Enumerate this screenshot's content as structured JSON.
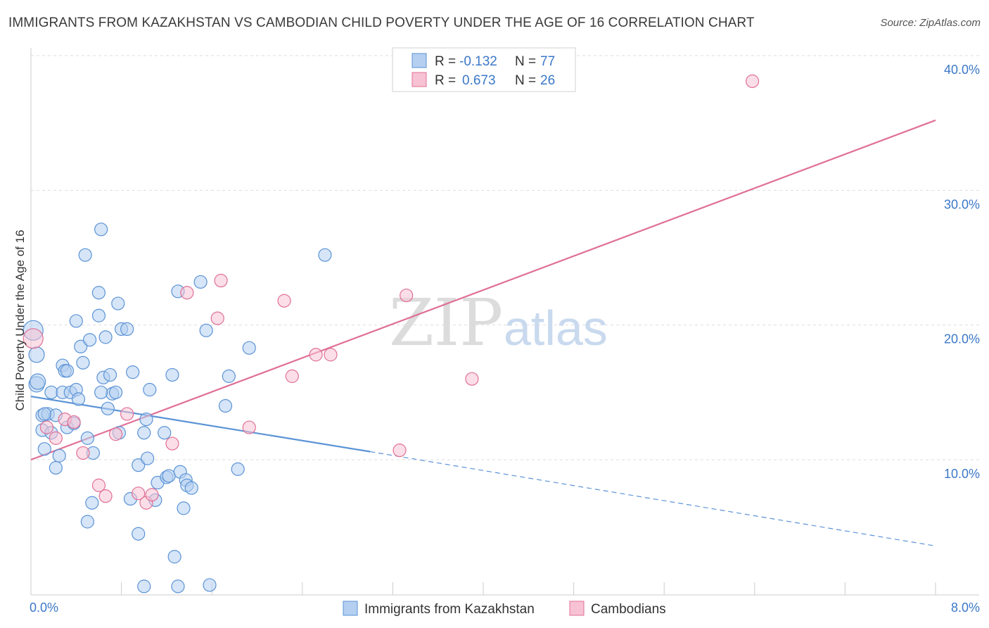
{
  "title": "IMMIGRANTS FROM KAZAKHSTAN VS CAMBODIAN CHILD POVERTY UNDER THE AGE OF 16 CORRELATION CHART",
  "source": "Source: ZipAtlas.com",
  "watermark": {
    "zip": "ZIP",
    "atlas": "atlas"
  },
  "colors": {
    "blue": "#5b93d6",
    "blue_fill": "#b4cff0",
    "pink": "#e07096",
    "pink_fill": "#f7c2d3",
    "accent_text": "#3b78c8"
  },
  "legend": {
    "rows": [
      {
        "r_label": "R =",
        "r_value": "-0.132",
        "n_label": "N =",
        "n_value": "77"
      },
      {
        "r_label": "R =",
        "r_value": "0.673",
        "n_label": "N =",
        "n_value": "26"
      }
    ]
  },
  "bottom_legend": [
    "Immigrants from Kazakhstan",
    "Cambodians"
  ],
  "chart_data": {
    "type": "scatter",
    "title": "IMMIGRANTS FROM KAZAKHSTAN VS CAMBODIAN CHILD POVERTY UNDER THE AGE OF 16 CORRELATION CHART",
    "xlabel": "",
    "ylabel": "Child Poverty Under the Age of 16",
    "xlim": [
      0,
      8
    ],
    "ylim": [
      0,
      41
    ],
    "x_tick_labels": [
      "0.0%",
      "8.0%"
    ],
    "y_ticks": [
      10,
      20,
      30,
      40
    ],
    "y_tick_labels": [
      "10.0%",
      "20.0%",
      "30.0%",
      "40.0%"
    ],
    "grid": true,
    "legend_position": "top-center",
    "series": [
      {
        "name": "Immigrants from Kazakhstan",
        "color": "#5b93d6",
        "trend": {
          "x0": 0,
          "y0": 14.7,
          "x1": 3,
          "y1": 10.6,
          "dashed_to_x": 8,
          "dashed_to_y": 3.6
        },
        "points": [
          [
            0.02,
            19.6
          ],
          [
            0.05,
            17.8
          ],
          [
            0.05,
            15.6
          ],
          [
            0.06,
            15.8
          ],
          [
            0.1,
            13.3
          ],
          [
            0.1,
            12.2
          ],
          [
            0.12,
            10.8
          ],
          [
            0.15,
            13.4
          ],
          [
            0.18,
            12.0
          ],
          [
            0.18,
            15.0
          ],
          [
            0.22,
            13.3
          ],
          [
            0.22,
            9.4
          ],
          [
            0.25,
            10.3
          ],
          [
            0.28,
            15.0
          ],
          [
            0.28,
            17.0
          ],
          [
            0.3,
            16.6
          ],
          [
            0.32,
            12.4
          ],
          [
            0.32,
            16.6
          ],
          [
            0.35,
            15.0
          ],
          [
            0.38,
            12.7
          ],
          [
            0.4,
            15.2
          ],
          [
            0.4,
            20.3
          ],
          [
            0.42,
            14.5
          ],
          [
            0.44,
            18.4
          ],
          [
            0.46,
            17.2
          ],
          [
            0.48,
            25.2
          ],
          [
            0.5,
            11.6
          ],
          [
            0.5,
            5.4
          ],
          [
            0.52,
            18.9
          ],
          [
            0.54,
            6.8
          ],
          [
            0.55,
            10.5
          ],
          [
            0.6,
            22.4
          ],
          [
            0.6,
            20.7
          ],
          [
            0.62,
            27.1
          ],
          [
            0.64,
            16.1
          ],
          [
            0.66,
            19.1
          ],
          [
            0.68,
            13.8
          ],
          [
            0.7,
            16.3
          ],
          [
            0.72,
            14.9
          ],
          [
            0.75,
            15.0
          ],
          [
            0.77,
            21.6
          ],
          [
            0.78,
            12.0
          ],
          [
            0.8,
            19.7
          ],
          [
            0.85,
            19.7
          ],
          [
            0.88,
            7.1
          ],
          [
            0.9,
            16.5
          ],
          [
            0.95,
            9.6
          ],
          [
            0.95,
            4.5
          ],
          [
            1.0,
            12.0
          ],
          [
            1.0,
            0.6
          ],
          [
            1.02,
            13.0
          ],
          [
            1.03,
            10.1
          ],
          [
            1.05,
            15.2
          ],
          [
            1.1,
            7.0
          ],
          [
            1.12,
            8.3
          ],
          [
            1.18,
            12.0
          ],
          [
            1.2,
            8.7
          ],
          [
            1.22,
            8.8
          ],
          [
            1.25,
            16.3
          ],
          [
            1.27,
            2.8
          ],
          [
            1.3,
            0.6
          ],
          [
            1.3,
            22.5
          ],
          [
            1.32,
            9.1
          ],
          [
            1.35,
            6.4
          ],
          [
            1.37,
            8.5
          ],
          [
            1.38,
            8.1
          ],
          [
            1.42,
            7.9
          ],
          [
            1.5,
            23.2
          ],
          [
            1.55,
            19.6
          ],
          [
            1.58,
            0.7
          ],
          [
            1.72,
            14.0
          ],
          [
            1.75,
            16.2
          ],
          [
            1.83,
            9.3
          ],
          [
            1.93,
            18.3
          ],
          [
            2.6,
            25.2
          ],
          [
            0.12,
            13.4
          ],
          [
            0.62,
            15.0
          ]
        ]
      },
      {
        "name": "Cambodians",
        "color": "#e07096",
        "trend": {
          "x0": 0,
          "y0": 10.0,
          "x1": 8,
          "y1": 35.2
        },
        "points": [
          [
            0.02,
            19.0
          ],
          [
            0.14,
            12.4
          ],
          [
            0.22,
            11.6
          ],
          [
            0.3,
            13.0
          ],
          [
            0.38,
            12.8
          ],
          [
            0.46,
            10.5
          ],
          [
            0.6,
            8.1
          ],
          [
            0.66,
            7.3
          ],
          [
            0.75,
            11.9
          ],
          [
            0.85,
            13.4
          ],
          [
            0.95,
            7.5
          ],
          [
            1.02,
            6.8
          ],
          [
            1.07,
            7.4
          ],
          [
            1.25,
            11.2
          ],
          [
            1.38,
            22.4
          ],
          [
            1.65,
            20.5
          ],
          [
            1.68,
            23.3
          ],
          [
            1.93,
            12.4
          ],
          [
            2.24,
            21.8
          ],
          [
            2.31,
            16.2
          ],
          [
            2.52,
            17.8
          ],
          [
            2.65,
            17.8
          ],
          [
            3.26,
            10.7
          ],
          [
            3.32,
            22.2
          ],
          [
            3.9,
            16.0
          ],
          [
            6.38,
            38.1
          ]
        ]
      }
    ]
  }
}
